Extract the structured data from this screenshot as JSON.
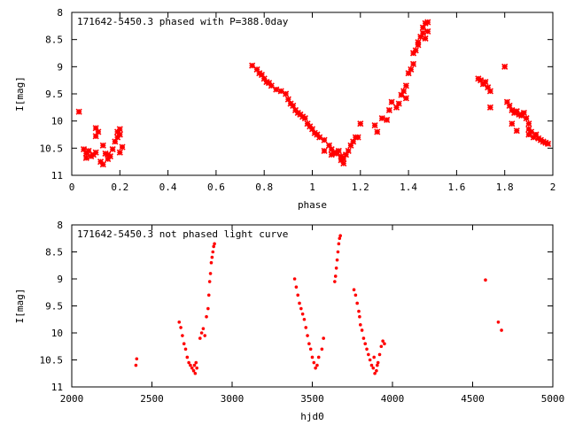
{
  "chart_data": [
    {
      "type": "scatter",
      "title": "171642-5450.3 phased with P=388.0day",
      "xlabel": "phase",
      "ylabel": "I[mag]",
      "xlim": [
        0,
        2
      ],
      "ylim": [
        8,
        11
      ],
      "y_inverted": true,
      "grid": false,
      "marker": "cross",
      "color": "#ff0000",
      "xticks": [
        "0",
        "0.2",
        "0.4",
        "0.6",
        "0.8",
        "1",
        "1.2",
        "1.4",
        "1.6",
        "1.8",
        "2"
      ],
      "xtick_values": [
        0,
        0.2,
        0.4,
        0.6,
        0.8,
        1,
        1.2,
        1.4,
        1.6,
        1.8,
        2
      ],
      "yticks": [
        "8",
        "8.5",
        "9",
        "9.5",
        "10",
        "10.5",
        "11"
      ],
      "ytick_values": [
        8,
        8.5,
        9,
        9.5,
        10,
        10.5,
        11
      ],
      "series": [
        {
          "points": [
            [
              0.03,
              9.83
            ],
            [
              0.05,
              10.52
            ],
            [
              0.06,
              10.6
            ],
            [
              0.06,
              10.68
            ],
            [
              0.07,
              10.55
            ],
            [
              0.08,
              10.65
            ],
            [
              0.09,
              10.62
            ],
            [
              0.1,
              10.58
            ],
            [
              0.1,
              10.13
            ],
            [
              0.11,
              10.2
            ],
            [
              0.1,
              10.28
            ],
            [
              0.12,
              10.75
            ],
            [
              0.13,
              10.8
            ],
            [
              0.14,
              10.6
            ],
            [
              0.15,
              10.62
            ],
            [
              0.16,
              10.65
            ],
            [
              0.17,
              10.52
            ],
            [
              0.18,
              10.38
            ],
            [
              0.19,
              10.3
            ],
            [
              0.19,
              10.2
            ],
            [
              0.2,
              10.15
            ],
            [
              0.2,
              10.25
            ],
            [
              0.21,
              10.48
            ],
            [
              0.2,
              10.58
            ],
            [
              0.15,
              10.7
            ],
            [
              0.13,
              10.45
            ],
            [
              0.75,
              8.98
            ],
            [
              0.77,
              9.05
            ],
            [
              0.78,
              9.12
            ],
            [
              0.79,
              9.15
            ],
            [
              0.8,
              9.22
            ],
            [
              0.81,
              9.28
            ],
            [
              0.82,
              9.3
            ],
            [
              0.83,
              9.35
            ],
            [
              0.85,
              9.42
            ],
            [
              0.87,
              9.45
            ],
            [
              0.89,
              9.5
            ],
            [
              0.9,
              9.6
            ],
            [
              0.91,
              9.68
            ],
            [
              0.92,
              9.72
            ],
            [
              0.93,
              9.8
            ],
            [
              0.94,
              9.85
            ],
            [
              0.95,
              9.88
            ],
            [
              0.96,
              9.92
            ],
            [
              0.97,
              9.95
            ],
            [
              0.98,
              10.05
            ],
            [
              0.99,
              10.1
            ],
            [
              1.0,
              10.15
            ],
            [
              1.01,
              10.22
            ],
            [
              1.02,
              10.25
            ],
            [
              1.03,
              10.3
            ],
            [
              1.05,
              10.35
            ],
            [
              1.07,
              10.45
            ],
            [
              1.08,
              10.52
            ],
            [
              1.09,
              10.58
            ],
            [
              1.1,
              10.6
            ],
            [
              1.12,
              10.65
            ],
            [
              1.13,
              10.7
            ],
            [
              1.14,
              10.62
            ],
            [
              1.15,
              10.55
            ],
            [
              1.16,
              10.45
            ],
            [
              1.17,
              10.38
            ],
            [
              1.18,
              10.3
            ],
            [
              1.19,
              10.3
            ],
            [
              1.2,
              10.05
            ],
            [
              1.12,
              10.72
            ],
            [
              1.11,
              10.55
            ],
            [
              1.13,
              10.78
            ],
            [
              1.05,
              10.55
            ],
            [
              1.08,
              10.62
            ],
            [
              1.26,
              10.08
            ],
            [
              1.27,
              10.2
            ],
            [
              1.29,
              9.95
            ],
            [
              1.31,
              9.98
            ],
            [
              1.32,
              9.8
            ],
            [
              1.33,
              9.65
            ],
            [
              1.35,
              9.75
            ],
            [
              1.36,
              9.68
            ],
            [
              1.37,
              9.52
            ],
            [
              1.38,
              9.45
            ],
            [
              1.39,
              9.35
            ],
            [
              1.39,
              9.58
            ],
            [
              1.4,
              9.12
            ],
            [
              1.41,
              9.05
            ],
            [
              1.42,
              8.95
            ],
            [
              1.42,
              8.75
            ],
            [
              1.43,
              8.7
            ],
            [
              1.44,
              8.6
            ],
            [
              1.44,
              8.55
            ],
            [
              1.45,
              8.45
            ],
            [
              1.46,
              8.38
            ],
            [
              1.46,
              8.28
            ],
            [
              1.47,
              8.2
            ],
            [
              1.48,
              8.18
            ],
            [
              1.48,
              8.35
            ],
            [
              1.47,
              8.48
            ],
            [
              1.69,
              9.22
            ],
            [
              1.7,
              9.25
            ],
            [
              1.71,
              9.32
            ],
            [
              1.72,
              9.28
            ],
            [
              1.73,
              9.38
            ],
            [
              1.74,
              9.45
            ],
            [
              1.74,
              9.75
            ],
            [
              1.8,
              9.0
            ],
            [
              1.81,
              9.65
            ],
            [
              1.82,
              9.72
            ],
            [
              1.83,
              9.8
            ],
            [
              1.84,
              9.85
            ],
            [
              1.85,
              9.82
            ],
            [
              1.86,
              9.88
            ],
            [
              1.87,
              9.9
            ],
            [
              1.88,
              9.85
            ],
            [
              1.89,
              9.95
            ],
            [
              1.9,
              10.15
            ],
            [
              1.9,
              10.25
            ],
            [
              1.91,
              10.2
            ],
            [
              1.92,
              10.3
            ],
            [
              1.93,
              10.25
            ],
            [
              1.94,
              10.32
            ],
            [
              1.95,
              10.35
            ],
            [
              1.96,
              10.38
            ],
            [
              1.97,
              10.4
            ],
            [
              1.98,
              10.42
            ],
            [
              1.83,
              10.05
            ],
            [
              1.85,
              10.18
            ],
            [
              1.9,
              10.05
            ]
          ]
        }
      ]
    },
    {
      "type": "scatter",
      "title": "171642-5450.3 not phased light curve",
      "xlabel": "hjd0",
      "ylabel": "I[mag]",
      "xlim": [
        2000,
        5000
      ],
      "ylim": [
        8,
        11
      ],
      "y_inverted": true,
      "grid": false,
      "marker": "dot",
      "color": "#ff0000",
      "xticks": [
        "2000",
        "2500",
        "3000",
        "3500",
        "4000",
        "4500",
        "5000"
      ],
      "xtick_values": [
        2000,
        2500,
        3000,
        3500,
        4000,
        4500,
        5000
      ],
      "yticks": [
        "8",
        "8.5",
        "9",
        "9.5",
        "10",
        "10.5",
        "11"
      ],
      "ytick_values": [
        8,
        8.5,
        9,
        9.5,
        10,
        10.5,
        11
      ],
      "series": [
        {
          "points": [
            [
              2400,
              10.6
            ],
            [
              2405,
              10.48
            ],
            [
              2670,
              9.8
            ],
            [
              2680,
              9.9
            ],
            [
              2690,
              10.05
            ],
            [
              2700,
              10.2
            ],
            [
              2710,
              10.3
            ],
            [
              2720,
              10.45
            ],
            [
              2730,
              10.55
            ],
            [
              2740,
              10.6
            ],
            [
              2750,
              10.65
            ],
            [
              2760,
              10.7
            ],
            [
              2765,
              10.6
            ],
            [
              2770,
              10.75
            ],
            [
              2775,
              10.55
            ],
            [
              2780,
              10.65
            ],
            [
              2800,
              10.1
            ],
            [
              2810,
              10.0
            ],
            [
              2820,
              9.92
            ],
            [
              2830,
              10.05
            ],
            [
              2840,
              9.7
            ],
            [
              2850,
              9.55
            ],
            [
              2855,
              9.3
            ],
            [
              2860,
              9.05
            ],
            [
              2865,
              8.9
            ],
            [
              2870,
              8.7
            ],
            [
              2875,
              8.6
            ],
            [
              2880,
              8.5
            ],
            [
              2885,
              8.4
            ],
            [
              2890,
              8.35
            ],
            [
              3390,
              9.0
            ],
            [
              3400,
              9.15
            ],
            [
              3410,
              9.3
            ],
            [
              3420,
              9.45
            ],
            [
              3430,
              9.55
            ],
            [
              3440,
              9.65
            ],
            [
              3450,
              9.75
            ],
            [
              3460,
              9.9
            ],
            [
              3470,
              10.05
            ],
            [
              3480,
              10.2
            ],
            [
              3490,
              10.3
            ],
            [
              3500,
              10.45
            ],
            [
              3510,
              10.55
            ],
            [
              3520,
              10.65
            ],
            [
              3530,
              10.6
            ],
            [
              3540,
              10.45
            ],
            [
              3560,
              10.3
            ],
            [
              3570,
              10.1
            ],
            [
              3640,
              9.05
            ],
            [
              3645,
              8.95
            ],
            [
              3650,
              8.8
            ],
            [
              3655,
              8.65
            ],
            [
              3660,
              8.5
            ],
            [
              3665,
              8.35
            ],
            [
              3670,
              8.25
            ],
            [
              3675,
              8.2
            ],
            [
              3760,
              9.2
            ],
            [
              3770,
              9.3
            ],
            [
              3780,
              9.45
            ],
            [
              3790,
              9.6
            ],
            [
              3795,
              9.7
            ],
            [
              3800,
              9.85
            ],
            [
              3810,
              9.95
            ],
            [
              3820,
              10.1
            ],
            [
              3830,
              10.2
            ],
            [
              3840,
              10.3
            ],
            [
              3850,
              10.4
            ],
            [
              3860,
              10.5
            ],
            [
              3870,
              10.6
            ],
            [
              3880,
              10.65
            ],
            [
              3890,
              10.75
            ],
            [
              3900,
              10.7
            ],
            [
              3910,
              10.55
            ],
            [
              3920,
              10.4
            ],
            [
              3930,
              10.25
            ],
            [
              3940,
              10.15
            ],
            [
              3950,
              10.2
            ],
            [
              3905,
              10.6
            ],
            [
              3885,
              10.45
            ],
            [
              4580,
              9.02
            ],
            [
              4660,
              9.8
            ],
            [
              4680,
              9.95
            ]
          ]
        }
      ]
    }
  ]
}
